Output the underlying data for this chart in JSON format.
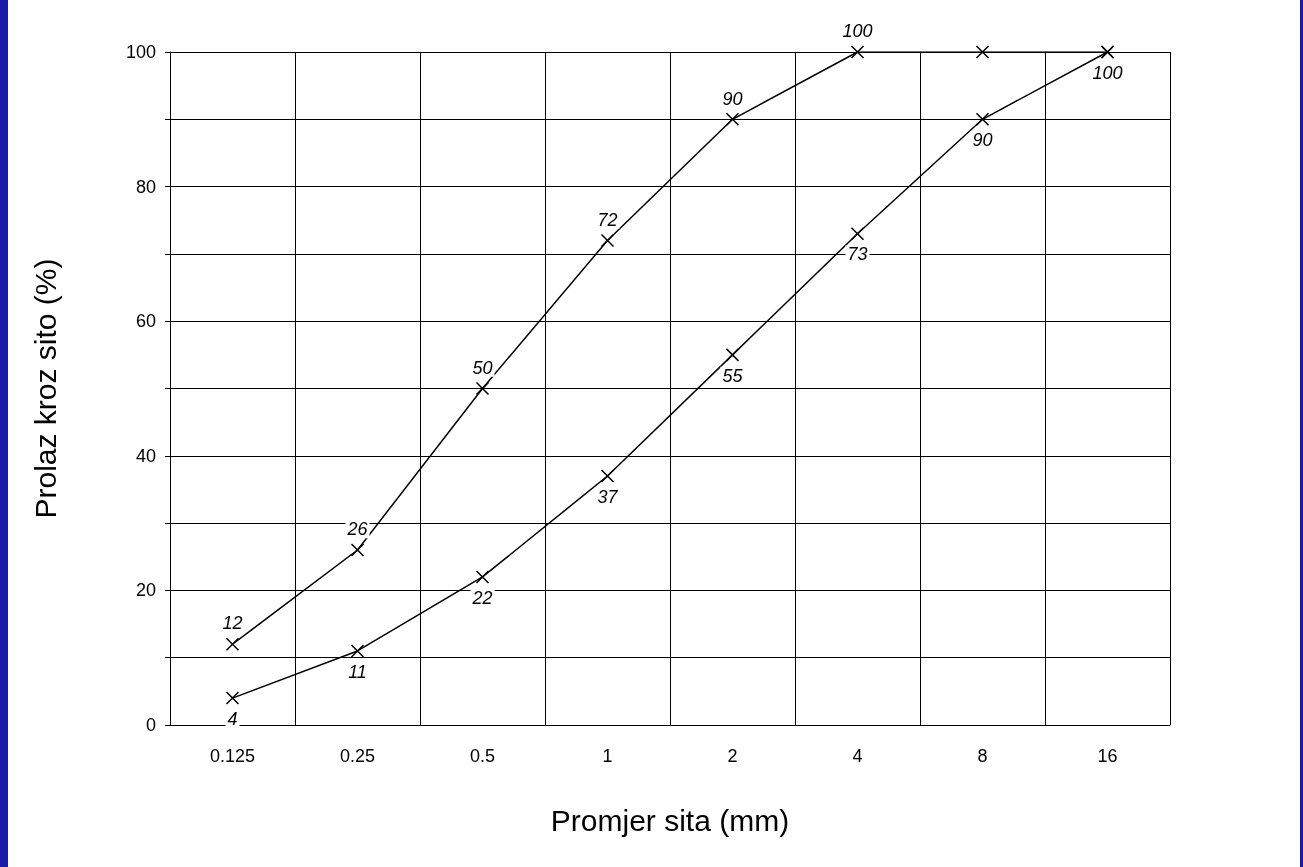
{
  "chart_data": {
    "type": "line",
    "xlabel": "Promjer sita (mm)",
    "ylabel": "Prolaz kroz sito (%)",
    "categories": [
      "0.125",
      "0.25",
      "0.5",
      "1",
      "2",
      "4",
      "8",
      "16"
    ],
    "series": [
      {
        "color": "#000000",
        "values": [
          12,
          26,
          50,
          72,
          90,
          100,
          100,
          100
        ],
        "value_labels": [
          "12",
          "26",
          "50",
          "72",
          "90",
          "100",
          null,
          null
        ]
      },
      {
        "color": "#000000",
        "values": [
          4,
          11,
          22,
          37,
          55,
          73,
          90,
          100
        ],
        "value_labels": [
          "4",
          "11",
          "22",
          "37",
          "55",
          "73",
          "90",
          "100"
        ]
      }
    ],
    "ylim": [
      0,
      100
    ],
    "yticks": [
      0,
      {
        "value": 10,
        "label": null
      },
      20,
      {
        "value": 30,
        "label": null
      },
      40,
      {
        "value": 50,
        "label": null
      },
      60,
      {
        "value": 70,
        "label": null
      },
      80,
      {
        "value": 90,
        "label": null
      },
      100
    ],
    "grid": true,
    "marker": "cross",
    "line_style": "solid"
  }
}
